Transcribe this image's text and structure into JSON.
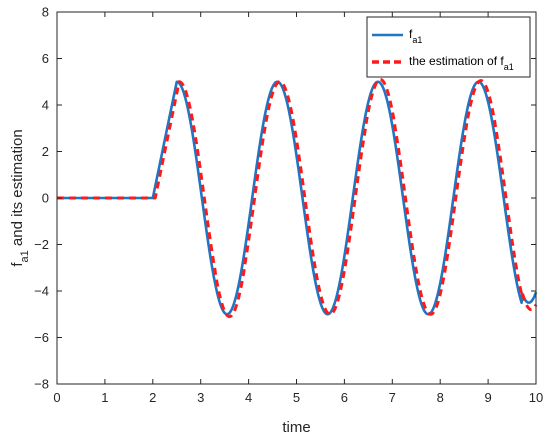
{
  "chart_data": {
    "type": "line",
    "title": "",
    "xlabel": "time",
    "ylabel": {
      "main": "f",
      "sub": "a1",
      "rest": " and its estimation"
    },
    "xlim": [
      0,
      10
    ],
    "ylim": [
      -8,
      8
    ],
    "xticks": [
      0,
      1,
      2,
      3,
      4,
      5,
      6,
      7,
      8,
      9,
      10
    ],
    "yticks": [
      -8,
      -6,
      -4,
      -2,
      0,
      2,
      4,
      6,
      8
    ],
    "grid": false,
    "legend_position": "top-right",
    "signal_model": {
      "zero_until": 2,
      "ramp_end": 2.5,
      "amplitude": 5,
      "period": 2.1
    },
    "series": [
      {
        "name": {
          "main": "f",
          "sub": "a1",
          "prefix": ""
        },
        "color": "#1f77c4",
        "style": "solid",
        "x": [
          0,
          1,
          2,
          2.5,
          3.025,
          3.55,
          4.075,
          4.6,
          5.125,
          5.65,
          6.175,
          6.7,
          7.225,
          7.75,
          8.275,
          8.8,
          9.325,
          9.85,
          10
        ],
        "y": [
          0,
          0,
          0,
          5,
          0,
          -5,
          0,
          5,
          0,
          -5,
          0,
          5,
          0,
          -5,
          0,
          5,
          0,
          -5,
          -4.5
        ]
      },
      {
        "name": {
          "prefix": "the estimation of ",
          "main": "f",
          "sub": "a1"
        },
        "color": "#ff1a1a",
        "style": "dashed",
        "x": [
          0,
          1,
          2,
          2.55,
          3.08,
          3.6,
          4.13,
          4.65,
          5.18,
          5.7,
          6.23,
          6.75,
          7.28,
          7.8,
          8.33,
          8.85,
          9.38,
          9.9,
          10
        ],
        "y": [
          0,
          0,
          0,
          5,
          0,
          -5.1,
          0,
          5,
          0,
          -5,
          0,
          5.1,
          0,
          -5,
          0,
          5.05,
          0,
          -5,
          -4.8
        ]
      }
    ]
  }
}
